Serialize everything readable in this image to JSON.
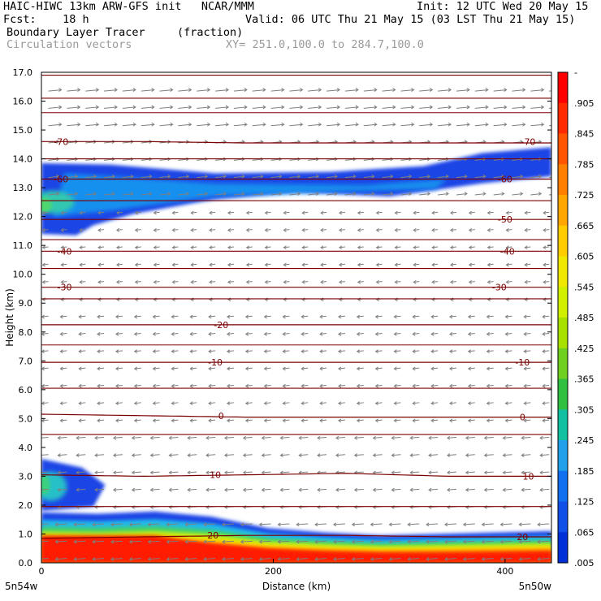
{
  "header": {
    "line1_left": "HAIC-HIWC 13km ARW-GFS init   NCAR/MMM",
    "line1_right": "Init: 12 UTC Wed 20 May 15",
    "fcst": "Fcst:    18 h",
    "valid": "Valid: 06 UTC Thu 21 May 15 (03 LST Thu 21 May 15)",
    "field": "Boundary Layer Tracer",
    "field_units": "(fraction)",
    "vectors": "Circulation vectors",
    "xy": "XY= 251.0,100.0 to 284.7,100.0"
  },
  "colors": {
    "contour": "#7a0000",
    "vector": "#7f7f7f",
    "frame": "#000000"
  },
  "chart_data": {
    "type": "heatmap",
    "xlabel": "Distance (km)",
    "ylabel": "Height (km)",
    "xlim": [
      0,
      440
    ],
    "ylim": [
      0,
      17
    ],
    "x_ticks": [
      {
        "value": 0,
        "label": "0"
      },
      {
        "value": 200,
        "label": "200"
      },
      {
        "value": 400,
        "label": "400"
      }
    ],
    "y_ticks": [
      {
        "value": 0,
        "label": "0.0"
      },
      {
        "value": 1,
        "label": "1.0"
      },
      {
        "value": 2,
        "label": "2.0"
      },
      {
        "value": 3,
        "label": "3.0"
      },
      {
        "value": 4,
        "label": "4.0"
      },
      {
        "value": 5,
        "label": "5.0"
      },
      {
        "value": 6,
        "label": "6.0"
      },
      {
        "value": 7,
        "label": "7.0"
      },
      {
        "value": 8,
        "label": "8.0"
      },
      {
        "value": 9,
        "label": "9.0"
      },
      {
        "value": 10,
        "label": "10.0"
      },
      {
        "value": 11,
        "label": "11.0"
      },
      {
        "value": 12,
        "label": "12.0"
      },
      {
        "value": 13,
        "label": "13.0"
      },
      {
        "value": 14,
        "label": "14.0"
      },
      {
        "value": 15,
        "label": "15.0"
      },
      {
        "value": 16,
        "label": "16.0"
      },
      {
        "value": 17,
        "label": "17.0"
      }
    ],
    "x_end_labels": {
      "left": "5n54w",
      "right": "5n50w"
    },
    "colorbar": {
      "labels": [
        "-",
        ".905",
        ".845",
        ".785",
        ".725",
        ".665",
        ".605",
        ".545",
        ".485",
        ".425",
        ".365",
        ".305",
        ".245",
        ".185",
        ".125",
        ".065",
        ".005"
      ],
      "colors": [
        "#ff0000",
        "#ff2a00",
        "#ff5500",
        "#ff8000",
        "#ffa600",
        "#ffcc00",
        "#f0e800",
        "#d0f000",
        "#a8e000",
        "#70d020",
        "#30c040",
        "#10c0a0",
        "#20a0e8",
        "#1070f0",
        "#1050e8",
        "#0030d8"
      ]
    },
    "temperature_contours": [
      {
        "label": "-70",
        "heights": [
          14.6,
          14.6,
          14.55,
          14.55,
          14.55,
          14.55
        ]
      },
      {
        "label": "-60",
        "heights": [
          13.3,
          13.3,
          13.3,
          13.3,
          13.3,
          13.3
        ]
      },
      {
        "label": "-50",
        "heights": [
          11.9,
          11.9,
          11.9,
          11.9,
          11.9,
          11.9
        ]
      },
      {
        "label": "-40",
        "heights": [
          10.8,
          10.8,
          10.8,
          10.8,
          10.8,
          10.8
        ]
      },
      {
        "label": "-30",
        "heights": [
          9.55,
          9.55,
          9.55,
          9.55,
          9.55,
          9.55
        ]
      },
      {
        "label": "-20",
        "heights": [
          8.25,
          8.25,
          8.25,
          8.25,
          8.25,
          8.25
        ]
      },
      {
        "label": "-10",
        "heights": [
          6.95,
          6.95,
          6.95,
          6.95,
          6.95,
          6.95
        ]
      },
      {
        "label": "0",
        "heights": [
          5.15,
          5.1,
          5.05,
          5.05,
          5.05,
          5.05
        ]
      },
      {
        "label": "10",
        "heights": [
          3.05,
          3.0,
          3.05,
          3.1,
          3.0,
          3.0
        ]
      },
      {
        "label": "20",
        "heights": [
          0.85,
          0.9,
          0.95,
          0.95,
          0.9,
          0.9
        ]
      }
    ],
    "extra_isotherms_km": [
      16.9,
      16.1,
      15.6,
      14.0,
      12.55,
      11.2,
      10.2,
      9.15,
      7.55,
      6.05,
      4.45,
      1.95
    ],
    "contour_x_km": [
      0,
      88,
      176,
      264,
      352,
      440
    ],
    "contour_labels": [
      {
        "text": "-70",
        "x": 17,
        "y": 14.6
      },
      {
        "text": "-70",
        "x": 420,
        "y": 14.6
      },
      {
        "text": "-60",
        "x": 17,
        "y": 13.3
      },
      {
        "text": "-60",
        "x": 400,
        "y": 13.3
      },
      {
        "text": "-50",
        "x": 400,
        "y": 11.9
      },
      {
        "text": "-40",
        "x": 20,
        "y": 10.8
      },
      {
        "text": "-40",
        "x": 402,
        "y": 10.8
      },
      {
        "text": "-30",
        "x": 20,
        "y": 9.55
      },
      {
        "text": "-30",
        "x": 395,
        "y": 9.55
      },
      {
        "text": "-20",
        "x": 155,
        "y": 8.25
      },
      {
        "text": "-10",
        "x": 150,
        "y": 6.95
      },
      {
        "text": "-10",
        "x": 415,
        "y": 6.95
      },
      {
        "text": "0",
        "x": 155,
        "y": 5.1
      },
      {
        "text": "0",
        "x": 415,
        "y": 5.05
      },
      {
        "text": "10",
        "x": 150,
        "y": 3.05
      },
      {
        "text": "10",
        "x": 420,
        "y": 3.0
      },
      {
        "text": "20",
        "x": 148,
        "y": 0.95
      },
      {
        "text": "20",
        "x": 415,
        "y": 0.9
      }
    ],
    "tracer_regions": [
      {
        "name": "upper_layer",
        "x_range": [
          0,
          440
        ],
        "y_top_km": [
          13.85,
          14.4
        ],
        "y_bottom_km": [
          11.35,
          13.4
        ],
        "max_fraction": 0.2
      },
      {
        "name": "mid_blob",
        "x_range": [
          0,
          55
        ],
        "y_range_km": [
          1.8,
          3.6
        ],
        "max_fraction": 0.15
      },
      {
        "name": "boundary_layer",
        "x_range": [
          0,
          440
        ],
        "y_range_km": [
          0,
          1.8
        ],
        "max_fraction": 1.0
      }
    ],
    "vectors": {
      "dominant_direction": "westward"
    }
  }
}
